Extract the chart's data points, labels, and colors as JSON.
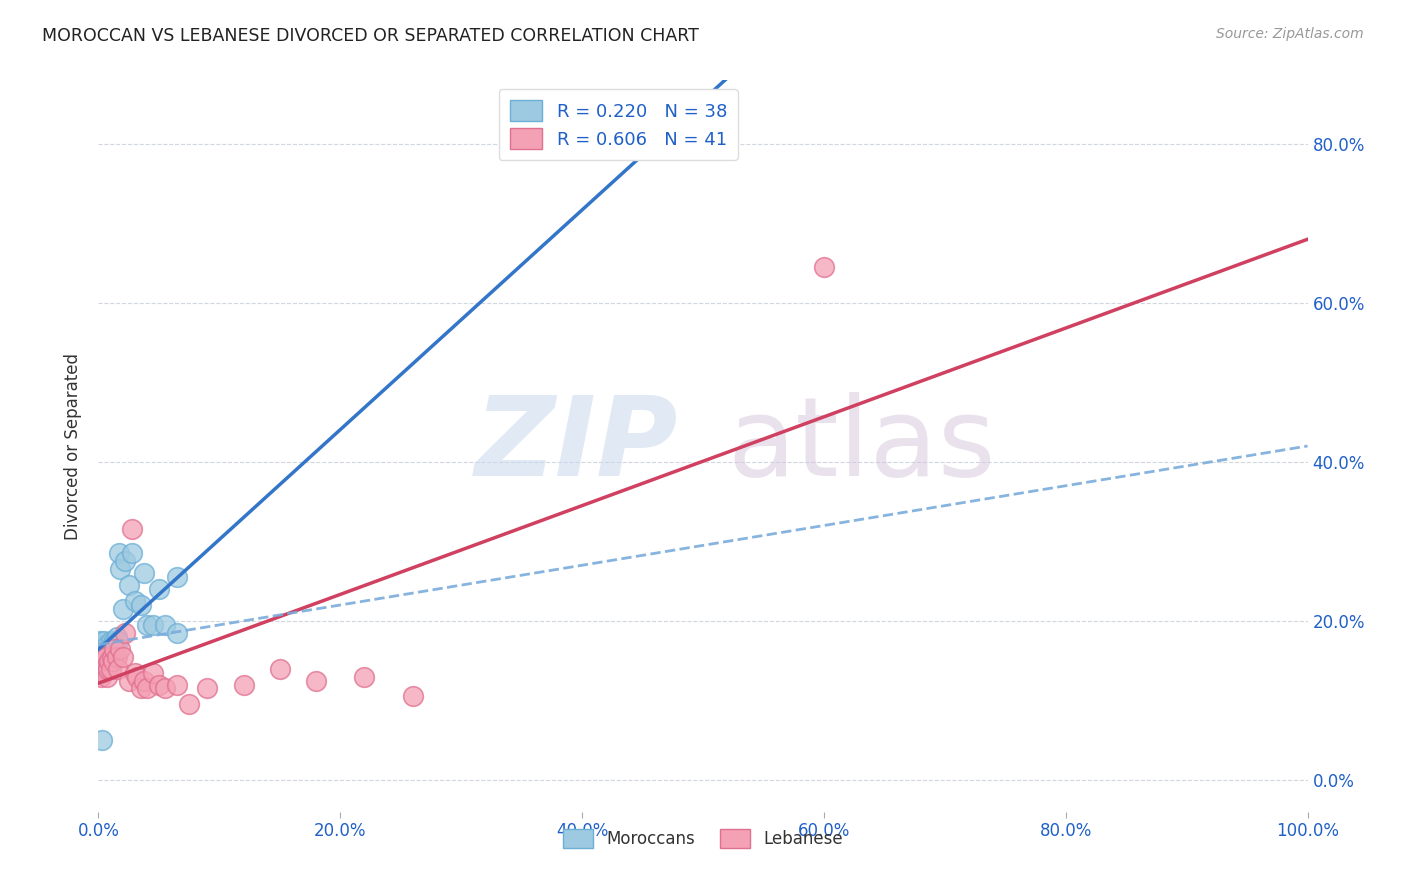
{
  "title": "MOROCCAN VS LEBANESE DIVORCED OR SEPARATED CORRELATION CHART",
  "source": "Source: ZipAtlas.com",
  "ylabel": "Divorced or Separated",
  "xlim": [
    0,
    1.0
  ],
  "ylim": [
    -0.04,
    0.88
  ],
  "moroccan_color": "#9ecae1",
  "lebanese_color": "#f4a0b5",
  "moroccan_edge": "#6baed6",
  "lebanese_edge": "#e07090",
  "regression_moroccan_color": "#3375c8",
  "regression_lebanese_color": "#d04060",
  "dashed_color": "#7aabdc",
  "R_moroccan": 0.22,
  "N_moroccan": 38,
  "R_lebanese": 0.606,
  "N_lebanese": 41,
  "moroccan_x": [
    0.001,
    0.002,
    0.003,
    0.003,
    0.004,
    0.004,
    0.005,
    0.005,
    0.006,
    0.006,
    0.007,
    0.007,
    0.008,
    0.009,
    0.01,
    0.01,
    0.011,
    0.012,
    0.013,
    0.014,
    0.015,
    0.016,
    0.017,
    0.018,
    0.02,
    0.022,
    0.025,
    0.028,
    0.03,
    0.035,
    0.038,
    0.04,
    0.045,
    0.05,
    0.055,
    0.065,
    0.003,
    0.065
  ],
  "moroccan_y": [
    0.175,
    0.165,
    0.16,
    0.17,
    0.155,
    0.165,
    0.16,
    0.175,
    0.155,
    0.165,
    0.16,
    0.17,
    0.155,
    0.165,
    0.16,
    0.175,
    0.17,
    0.17,
    0.175,
    0.155,
    0.18,
    0.175,
    0.285,
    0.265,
    0.215,
    0.275,
    0.245,
    0.285,
    0.225,
    0.22,
    0.26,
    0.195,
    0.195,
    0.24,
    0.195,
    0.255,
    0.05,
    0.185
  ],
  "lebanese_x": [
    0.001,
    0.002,
    0.003,
    0.003,
    0.004,
    0.005,
    0.005,
    0.006,
    0.006,
    0.007,
    0.007,
    0.008,
    0.009,
    0.01,
    0.011,
    0.012,
    0.013,
    0.015,
    0.016,
    0.018,
    0.02,
    0.022,
    0.025,
    0.028,
    0.03,
    0.032,
    0.035,
    0.038,
    0.04,
    0.045,
    0.05,
    0.055,
    0.065,
    0.075,
    0.09,
    0.12,
    0.15,
    0.18,
    0.22,
    0.26,
    0.6
  ],
  "lebanese_y": [
    0.145,
    0.13,
    0.14,
    0.155,
    0.135,
    0.14,
    0.155,
    0.14,
    0.155,
    0.13,
    0.145,
    0.14,
    0.15,
    0.14,
    0.155,
    0.15,
    0.165,
    0.155,
    0.14,
    0.165,
    0.155,
    0.185,
    0.125,
    0.315,
    0.135,
    0.13,
    0.115,
    0.125,
    0.115,
    0.135,
    0.12,
    0.115,
    0.12,
    0.095,
    0.115,
    0.12,
    0.14,
    0.125,
    0.13,
    0.105,
    0.645
  ]
}
